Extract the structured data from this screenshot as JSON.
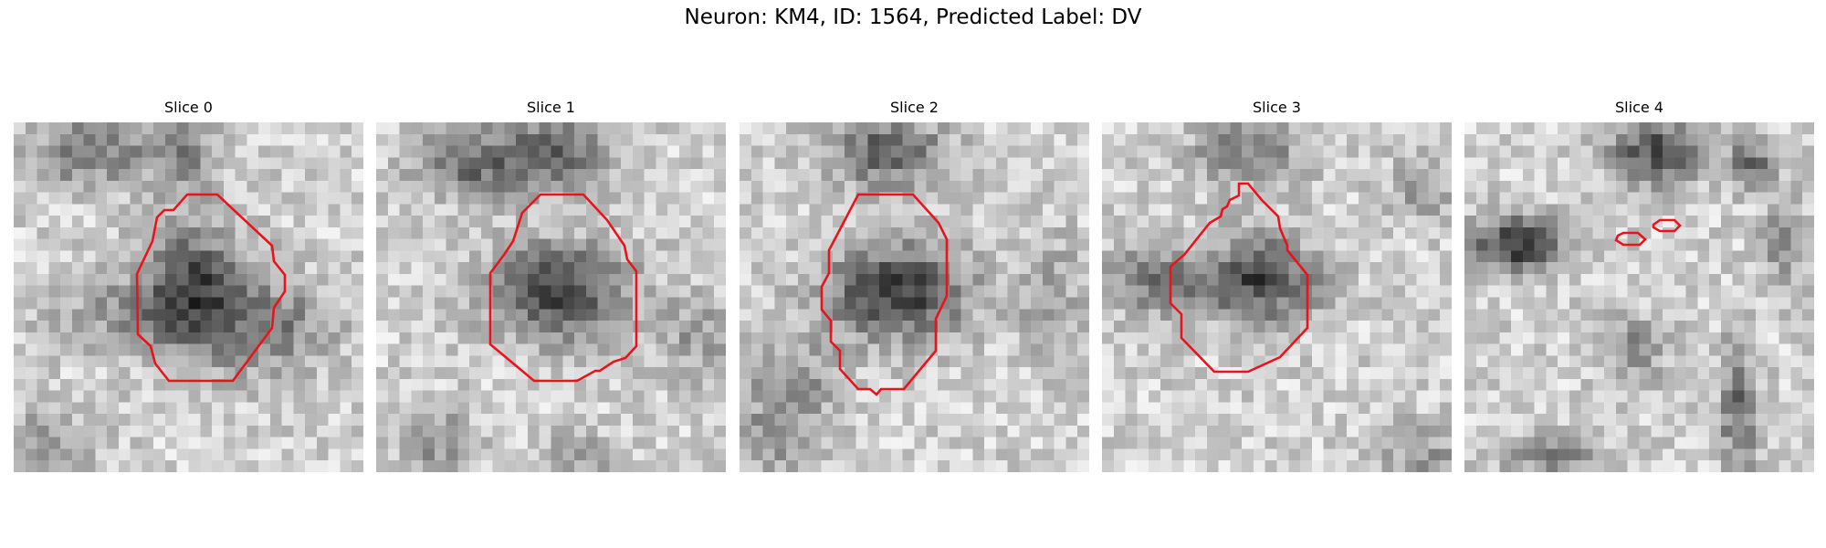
{
  "figure": {
    "title": "Neuron: KM4, ID: 1564, Predicted Label: DV"
  },
  "panels": [
    {
      "title": "Slice 0"
    },
    {
      "title": "Slice 1"
    },
    {
      "title": "Slice 2"
    },
    {
      "title": "Slice 3"
    },
    {
      "title": "Slice 4"
    }
  ],
  "colors": {
    "contour": "#e8141c",
    "colormap": "gray (inverted)"
  }
}
